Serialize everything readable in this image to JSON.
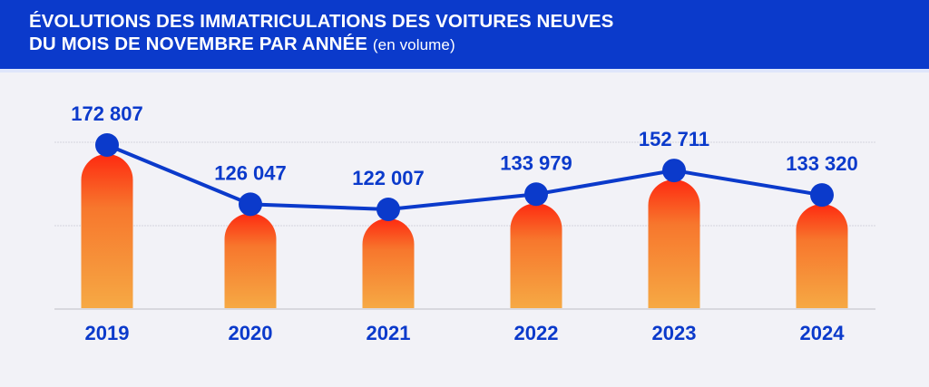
{
  "header": {
    "title_line1": "ÉVOLUTIONS DES IMMATRICULATIONS DES VOITURES NEUVES",
    "title_line2": "DU MOIS DE NOVEMBRE PAR ANNÉE",
    "title_suffix": "(en volume)"
  },
  "chart_data": {
    "type": "bar",
    "title": "ÉVOLUTIONS DES IMMATRICULATIONS DES VOITURES NEUVES DU MOIS DE NOVEMBRE PAR ANNÉE (en volume)",
    "categories": [
      "2019",
      "2020",
      "2021",
      "2022",
      "2023",
      "2024"
    ],
    "values": [
      172807,
      126047,
      122007,
      133979,
      152711,
      133320
    ],
    "value_labels": [
      "172 807",
      "126 047",
      "122 007",
      "133 979",
      "152 711",
      "133 320"
    ],
    "overlay": "line with markers",
    "xlabel": "",
    "ylabel": "",
    "grid": true,
    "colors": {
      "bar_top": "#fe2a10",
      "bar_bottom": "#f6a944",
      "line": "#0b3acb",
      "text": "#0b3acb"
    }
  }
}
